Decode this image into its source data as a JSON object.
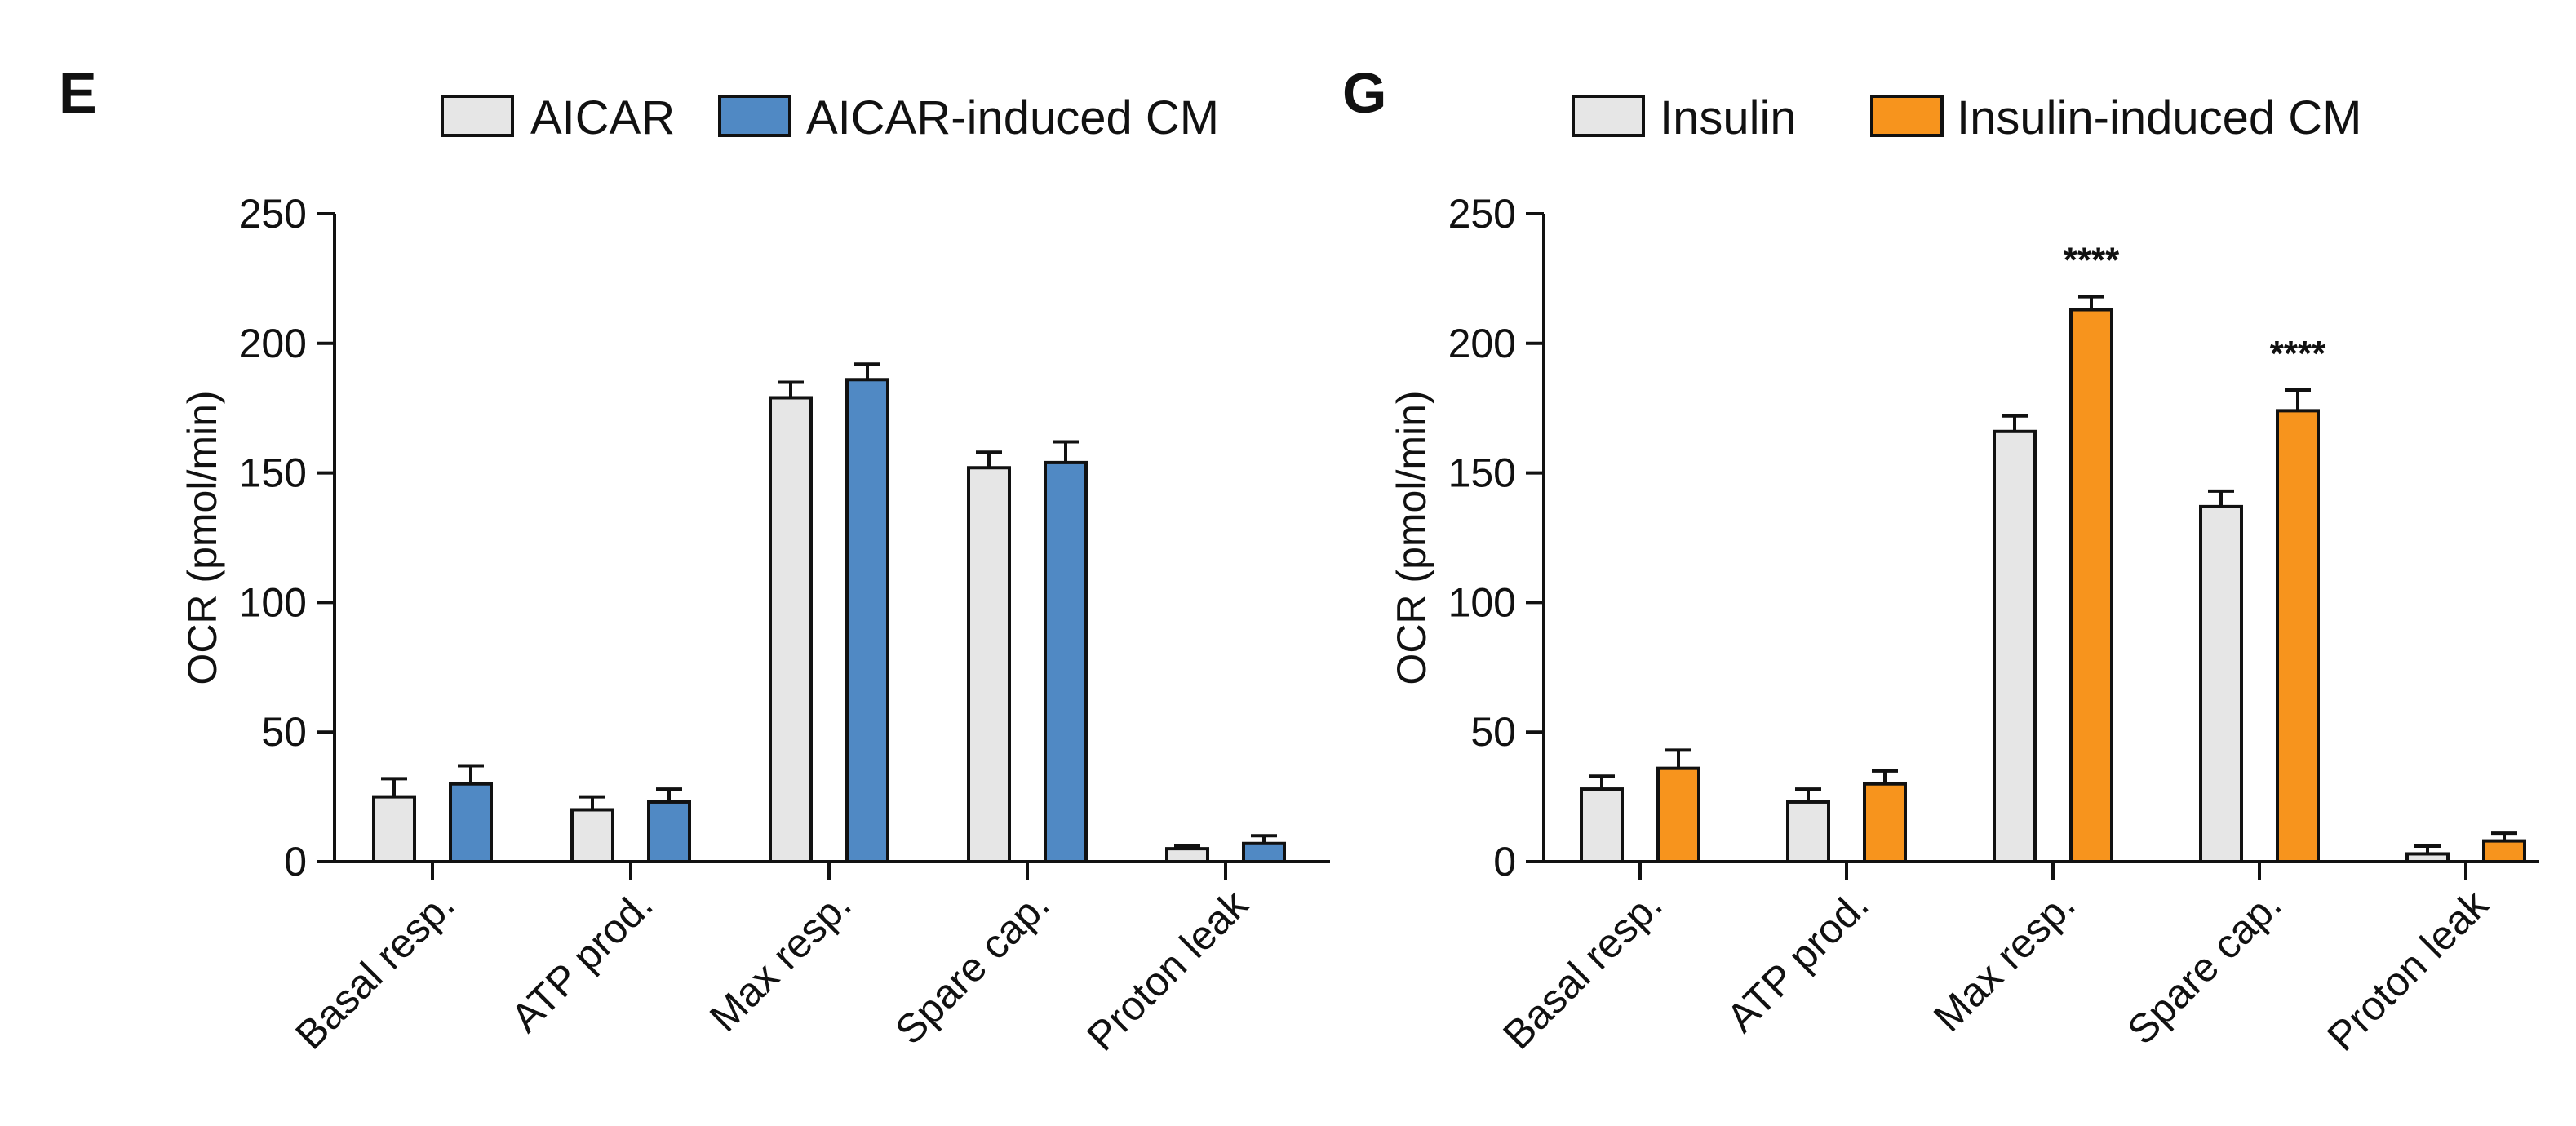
{
  "colors": {
    "control": "#e6e6e6",
    "aicar": "#5089c4",
    "insulin": "#f7941d",
    "stroke": "#111111"
  },
  "chart_data": [
    {
      "panel": "E",
      "type": "bar",
      "categories": [
        "Basal resp.",
        "ATP prod.",
        "Max resp.",
        "Spare cap.",
        "Proton leak"
      ],
      "ylabel": "OCR (pmol/min)",
      "ylim": [
        0,
        250
      ],
      "yticks": [
        0,
        50,
        100,
        150,
        200,
        250
      ],
      "series": [
        {
          "name": "AICAR",
          "color_key": "control",
          "values": [
            25,
            20,
            179,
            152,
            5
          ],
          "errors": [
            7,
            5,
            6,
            6,
            1
          ]
        },
        {
          "name": "AICAR-induced CM",
          "color_key": "aicar",
          "values": [
            30,
            23,
            186,
            154,
            7
          ],
          "errors": [
            7,
            5,
            6,
            8,
            3
          ]
        }
      ],
      "annotations": [],
      "legend": "top"
    },
    {
      "panel": "G",
      "type": "bar",
      "categories": [
        "Basal resp.",
        "ATP prod.",
        "Max resp.",
        "Spare cap.",
        "Proton leak"
      ],
      "ylabel": "OCR (pmol/min)",
      "ylim": [
        0,
        250
      ],
      "yticks": [
        0,
        50,
        100,
        150,
        200,
        250
      ],
      "series": [
        {
          "name": "Insulin",
          "color_key": "control",
          "values": [
            28,
            23,
            166,
            137,
            3
          ],
          "errors": [
            5,
            5,
            6,
            6,
            3
          ]
        },
        {
          "name": "Insulin-induced CM",
          "color_key": "insulin",
          "values": [
            36,
            30,
            213,
            174,
            8
          ],
          "errors": [
            7,
            5,
            5,
            8,
            3
          ]
        }
      ],
      "annotations": [
        {
          "category_index": 2,
          "series_index": 1,
          "text": "****"
        },
        {
          "category_index": 3,
          "series_index": 1,
          "text": "****"
        }
      ],
      "legend": "top"
    }
  ]
}
